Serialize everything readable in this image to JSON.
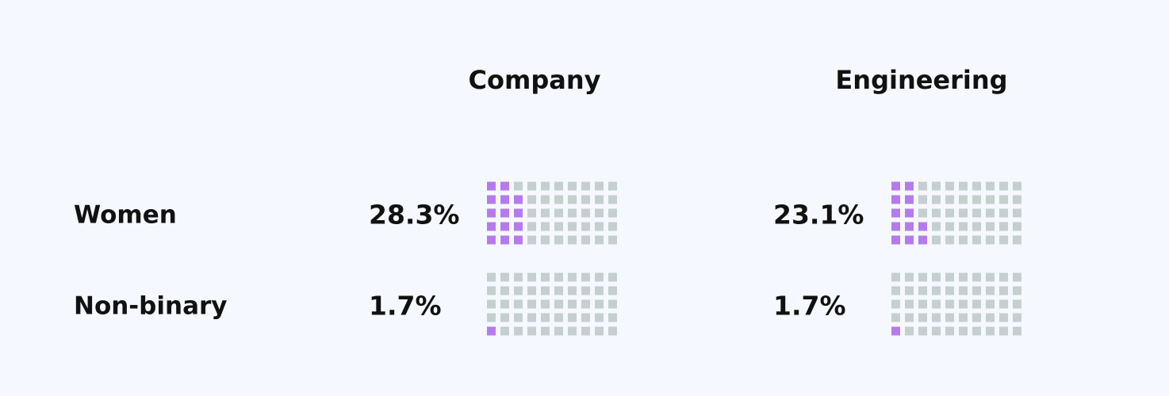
{
  "chart_data": {
    "type": "waffle",
    "columns": [
      "Company",
      "Engineering"
    ],
    "series": [
      {
        "name": "Women",
        "values": [
          28.3,
          23.1
        ],
        "value_labels": [
          "28.3%",
          "23.1%"
        ]
      },
      {
        "name": "Non-binary",
        "values": [
          1.7,
          1.7
        ],
        "value_labels": [
          "1.7%",
          "1.7%"
        ]
      }
    ],
    "color": "#b57bee",
    "empty_color": "#c5cfcf",
    "grid_rows": 5,
    "grid_cols": 10,
    "total": 100
  }
}
